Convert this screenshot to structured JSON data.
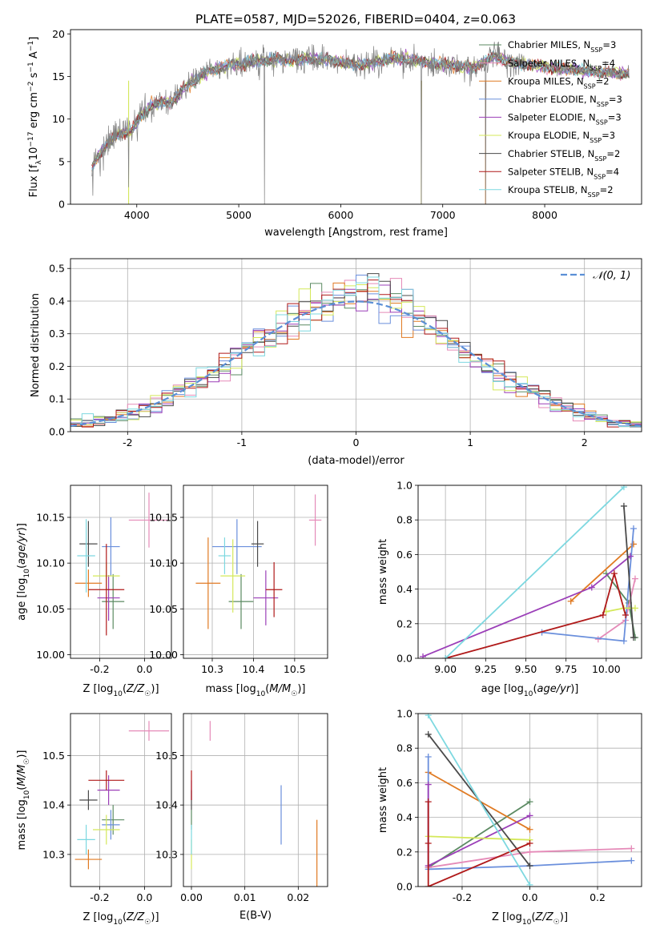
{
  "page": {
    "title": "PLATE=0587, MJD=52026, FIBERID=0404, z=0.063"
  },
  "palette": {
    "Chabrier MILES": "#5b8a62",
    "Salpeter MILES": "#e58ab8",
    "Kroupa MILES": "#e07a22",
    "Chabrier ELODIE": "#6a8fdc",
    "Salpeter ELODIE": "#9b3fb8",
    "Kroupa ELODIE": "#d4e85a",
    "Chabrier STELIB": "#4a4a4a",
    "Salpeter STELIB": "#b01919",
    "Kroupa STELIB": "#7dd8e0",
    "spectrum": "#808080",
    "normal": "#5b8fd6"
  },
  "chart_data": [
    {
      "id": "spectrum",
      "type": "line",
      "title": "PLATE=0587, MJD=52026, FIBERID=0404, z=0.063",
      "xlabel": "wavelength [Angstrom, rest frame]",
      "ylabel_parts": [
        "Flux [f",
        "λ",
        "10",
        "−17",
        " erg cm",
        "−2",
        " s",
        "−1",
        " A",
        "−1",
        "]"
      ],
      "xlim": [
        3350,
        8950
      ],
      "ylim": [
        0,
        20.5
      ],
      "xticks": [
        4000,
        5000,
        6000,
        7000,
        8000
      ],
      "yticks": [
        0,
        5,
        10,
        15,
        20
      ],
      "grid": false,
      "legend": "right",
      "legend_entries": [
        {
          "series": "Chabrier MILES",
          "label": "Chabrier MILES, N",
          "sub": "SSP",
          "rest": "=3"
        },
        {
          "series": "Salpeter MILES",
          "label": "Salpeter MILES, N",
          "sub": "SSP",
          "rest": "=4"
        },
        {
          "series": "Kroupa MILES",
          "label": "Kroupa MILES, N",
          "sub": "SSP",
          "rest": "=2"
        },
        {
          "series": "Chabrier ELODIE",
          "label": "Chabrier ELODIE, N",
          "sub": "SSP",
          "rest": "=3"
        },
        {
          "series": "Salpeter ELODIE",
          "label": "Salpeter ELODIE, N",
          "sub": "SSP",
          "rest": "=3"
        },
        {
          "series": "Kroupa ELODIE",
          "label": "Kroupa ELODIE, N",
          "sub": "SSP",
          "rest": "=3"
        },
        {
          "series": "Chabrier STELIB",
          "label": "Chabrier STELIB, N",
          "sub": "SSP",
          "rest": "=2"
        },
        {
          "series": "Salpeter STELIB",
          "label": "Salpeter STELIB, N",
          "sub": "SSP",
          "rest": "=4"
        },
        {
          "series": "Kroupa STELIB",
          "label": "Kroupa STELIB, N",
          "sub": "SSP",
          "rest": "=2"
        }
      ],
      "continuum": [
        [
          3560,
          4.2
        ],
        [
          3650,
          6.2
        ],
        [
          3750,
          7.6
        ],
        [
          3850,
          8.4
        ],
        [
          3950,
          8.6
        ],
        [
          4050,
          10.5
        ],
        [
          4150,
          11.7
        ],
        [
          4250,
          11.9
        ],
        [
          4350,
          12.1
        ],
        [
          4500,
          14.0
        ],
        [
          4700,
          15.6
        ],
        [
          4900,
          16.3
        ],
        [
          5100,
          16.6
        ],
        [
          5300,
          17.0
        ],
        [
          5500,
          16.9
        ],
        [
          5700,
          17.1
        ],
        [
          5900,
          17.0
        ],
        [
          6100,
          16.4
        ],
        [
          6300,
          16.5
        ],
        [
          6500,
          17.1
        ],
        [
          6700,
          16.9
        ],
        [
          6900,
          16.5
        ],
        [
          7100,
          16.3
        ],
        [
          7300,
          16.0
        ],
        [
          7500,
          17.4
        ],
        [
          7700,
          16.6
        ],
        [
          7900,
          16.3
        ],
        [
          8100,
          16.0
        ],
        [
          8300,
          15.8
        ],
        [
          8500,
          15.5
        ],
        [
          8700,
          15.4
        ],
        [
          8830,
          15.4
        ]
      ],
      "spikes": [
        [
          3570,
          1.0
        ],
        [
          5250,
          0
        ],
        [
          6790,
          0
        ],
        [
          7420,
          0
        ],
        [
          3920,
          2.0
        ]
      ]
    },
    {
      "id": "residuals",
      "type": "histogram",
      "xlabel": "(data-model)/error",
      "ylabel": "Normed distribution",
      "xlim": [
        -2.5,
        2.5
      ],
      "ylim": [
        0,
        0.53
      ],
      "xticks": [
        -2,
        -1,
        0,
        1,
        2
      ],
      "yticks": [
        0.0,
        0.1,
        0.2,
        0.3,
        0.4,
        0.5
      ],
      "grid": true,
      "legend": "top-right",
      "legend_label": "𝒩(0, 1)",
      "bin_width": 0.1
    },
    {
      "id": "age_vs_Z",
      "type": "scatter",
      "xlabel": "Z [log10(Z/Z☉)]",
      "ylabel": "age  [log10(age/yr)]",
      "xlim": [
        -0.33,
        0.12
      ],
      "ylim": [
        9.996,
        10.185
      ],
      "xticks": [
        -0.2,
        0.0
      ],
      "yticks": [
        10.0,
        10.05,
        10.1,
        10.15
      ],
      "grid": true,
      "points": [
        {
          "series": "Chabrier MILES",
          "x": -0.14,
          "xerr": 0.05,
          "y": 10.058,
          "yerr": 0.03
        },
        {
          "series": "Salpeter MILES",
          "x": 0.02,
          "xerr": 0.09,
          "y": 10.147,
          "yerr": 0.03
        },
        {
          "series": "Kroupa MILES",
          "x": -0.25,
          "xerr": 0.06,
          "y": 10.078,
          "yerr": 0.015
        },
        {
          "series": "Chabrier ELODIE",
          "x": -0.15,
          "xerr": 0.04,
          "y": 10.118,
          "yerr": 0.032
        },
        {
          "series": "Salpeter ELODIE",
          "x": -0.16,
          "xerr": 0.05,
          "y": 10.062,
          "yerr": 0.025
        },
        {
          "series": "Kroupa ELODIE",
          "x": -0.17,
          "xerr": 0.06,
          "y": 10.086,
          "yerr": 0.015
        },
        {
          "series": "Chabrier STELIB",
          "x": -0.25,
          "xerr": 0.04,
          "y": 10.121,
          "yerr": 0.025
        },
        {
          "series": "Salpeter STELIB",
          "x": -0.17,
          "xerr": 0.08,
          "y": 10.071,
          "yerr": 0.05
        },
        {
          "series": "Kroupa STELIB",
          "x": -0.26,
          "xerr": 0.04,
          "y": 10.108,
          "yerr": 0.04
        }
      ]
    },
    {
      "id": "age_vs_mass",
      "type": "scatter",
      "xlabel": "mass [log10(M/M☉)]",
      "xlim": [
        10.23,
        10.58
      ],
      "ylim": [
        9.996,
        10.185
      ],
      "xticks": [
        10.3,
        10.4,
        10.5
      ],
      "yticks": [
        10.0,
        10.05,
        10.1,
        10.15
      ],
      "grid": true,
      "points": [
        {
          "series": "Chabrier MILES",
          "x": 10.37,
          "xerr": 0.03,
          "y": 10.058,
          "yerr": 0.03
        },
        {
          "series": "Salpeter MILES",
          "x": 10.55,
          "xerr": 0.015,
          "y": 10.147,
          "yerr": 0.028
        },
        {
          "series": "Kroupa MILES",
          "x": 10.29,
          "xerr": 0.03,
          "y": 10.078,
          "yerr": 0.05
        },
        {
          "series": "Chabrier ELODIE",
          "x": 10.36,
          "xerr": 0.06,
          "y": 10.118,
          "yerr": 0.03
        },
        {
          "series": "Salpeter ELODIE",
          "x": 10.43,
          "xerr": 0.03,
          "y": 10.062,
          "yerr": 0.03
        },
        {
          "series": "Kroupa ELODIE",
          "x": 10.35,
          "xerr": 0.03,
          "y": 10.086,
          "yerr": 0.04
        },
        {
          "series": "Chabrier STELIB",
          "x": 10.41,
          "xerr": 0.015,
          "y": 10.121,
          "yerr": 0.025
        },
        {
          "series": "Salpeter STELIB",
          "x": 10.45,
          "xerr": 0.02,
          "y": 10.071,
          "yerr": 0.03
        },
        {
          "series": "Kroupa STELIB",
          "x": 10.33,
          "xerr": 0.015,
          "y": 10.108,
          "yerr": 0.02
        }
      ]
    },
    {
      "id": "weight_vs_age",
      "type": "line",
      "xlabel": "age  [log10(age/yr)]",
      "ylabel": "mass weight",
      "xlim": [
        8.83,
        10.22
      ],
      "ylim": [
        0,
        1
      ],
      "xticks": [
        9.0,
        9.25,
        9.5,
        9.75,
        10.0
      ],
      "yticks": [
        0.0,
        0.2,
        0.4,
        0.6,
        0.8,
        1.0
      ],
      "grid": true,
      "series": [
        {
          "name": "Chabrier MILES",
          "points": [
            [
              10.0,
              0.49
            ],
            [
              10.14,
              0.32
            ],
            [
              10.18,
              0.12
            ]
          ]
        },
        {
          "name": "Salpeter MILES",
          "points": [
            [
              9.95,
              0.11
            ],
            [
              10.12,
              0.22
            ],
            [
              10.18,
              0.46
            ]
          ]
        },
        {
          "name": "Kroupa MILES",
          "points": [
            [
              9.78,
              0.33
            ],
            [
              10.17,
              0.66
            ]
          ]
        },
        {
          "name": "Chabrier ELODIE",
          "points": [
            [
              9.6,
              0.15
            ],
            [
              10.11,
              0.1
            ],
            [
              10.17,
              0.75
            ]
          ]
        },
        {
          "name": "Salpeter ELODIE",
          "points": [
            [
              8.86,
              0.01
            ],
            [
              9.91,
              0.41
            ],
            [
              10.15,
              0.59
            ]
          ]
        },
        {
          "name": "Kroupa ELODIE",
          "points": [
            [
              10.0,
              0.27
            ],
            [
              10.11,
              0.29
            ],
            [
              10.18,
              0.29
            ]
          ]
        },
        {
          "name": "Chabrier STELIB",
          "points": [
            [
              10.11,
              0.88
            ],
            [
              10.17,
              0.12
            ]
          ]
        },
        {
          "name": "Salpeter STELIB",
          "points": [
            [
              9.0,
              0.0
            ],
            [
              9.98,
              0.25
            ],
            [
              10.05,
              0.49
            ],
            [
              10.12,
              0.25
            ]
          ]
        },
        {
          "name": "Kroupa STELIB",
          "points": [
            [
              9.0,
              0.0
            ],
            [
              10.11,
              0.99
            ]
          ]
        }
      ]
    },
    {
      "id": "mass_vs_Z",
      "type": "scatter",
      "xlabel": "Z [log10(Z/Z☉)]",
      "ylabel": "mass [log10(M/M☉)]",
      "xlim": [
        -0.33,
        0.12
      ],
      "ylim": [
        10.235,
        10.585
      ],
      "xticks": [
        -0.2,
        0.0
      ],
      "yticks": [
        10.3,
        10.4,
        10.5
      ],
      "grid": true,
      "points": [
        {
          "series": "Chabrier MILES",
          "x": -0.14,
          "xerr": 0.05,
          "y": 10.37,
          "yerr": 0.03
        },
        {
          "series": "Salpeter MILES",
          "x": 0.02,
          "xerr": 0.09,
          "y": 10.55,
          "yerr": 0.02
        },
        {
          "series": "Kroupa MILES",
          "x": -0.25,
          "xerr": 0.06,
          "y": 10.29,
          "yerr": 0.02
        },
        {
          "series": "Chabrier ELODIE",
          "x": -0.15,
          "xerr": 0.04,
          "y": 10.36,
          "yerr": 0.03
        },
        {
          "series": "Salpeter ELODIE",
          "x": -0.16,
          "xerr": 0.05,
          "y": 10.43,
          "yerr": 0.03
        },
        {
          "series": "Kroupa ELODIE",
          "x": -0.17,
          "xerr": 0.06,
          "y": 10.35,
          "yerr": 0.03
        },
        {
          "series": "Chabrier STELIB",
          "x": -0.25,
          "xerr": 0.04,
          "y": 10.41,
          "yerr": 0.02
        },
        {
          "series": "Salpeter STELIB",
          "x": -0.17,
          "xerr": 0.08,
          "y": 10.45,
          "yerr": 0.02
        },
        {
          "series": "Kroupa STELIB",
          "x": -0.26,
          "xerr": 0.04,
          "y": 10.33,
          "yerr": 0.03
        }
      ]
    },
    {
      "id": "mass_vs_ebv",
      "type": "scatter",
      "xlabel": "E(B-V)",
      "xlim": [
        -0.0015,
        0.0255
      ],
      "ylim": [
        10.235,
        10.585
      ],
      "xticks": [
        0.0,
        0.01,
        0.02
      ],
      "yticks": [
        10.3,
        10.4,
        10.5
      ],
      "grid": true,
      "points": [
        {
          "series": "Chabrier MILES",
          "x": 0.0,
          "y": 10.37,
          "yerr": 0.02
        },
        {
          "series": "Salpeter MILES",
          "x": 0.0035,
          "y": 10.55,
          "yerr": 0.02
        },
        {
          "series": "Kroupa MILES",
          "x": 0.0235,
          "y": 10.3,
          "yerr": 0.07
        },
        {
          "series": "Chabrier ELODIE",
          "x": 0.0168,
          "y": 10.38,
          "yerr": 0.06
        },
        {
          "series": "Salpeter ELODIE",
          "x": 0.0,
          "y": 10.43,
          "yerr": 0.02
        },
        {
          "series": "Kroupa ELODIE",
          "x": 0.0,
          "y": 10.3,
          "yerr": 0.03
        },
        {
          "series": "Chabrier STELIB",
          "x": 0.0,
          "y": 10.41,
          "yerr": 0.02
        },
        {
          "series": "Salpeter STELIB",
          "x": 0.0,
          "y": 10.44,
          "yerr": 0.03
        },
        {
          "series": "Kroupa STELIB",
          "x": 0.0,
          "y": 10.33,
          "yerr": 0.03
        }
      ]
    },
    {
      "id": "weight_vs_Z",
      "type": "line",
      "xlabel": "Z [log10(Z/Z☉)]",
      "ylabel": "mass weight",
      "xlim": [
        -0.33,
        0.33
      ],
      "ylim": [
        0,
        1
      ],
      "xticks": [
        -0.2,
        0.0,
        0.2
      ],
      "yticks": [
        0.0,
        0.2,
        0.4,
        0.6,
        0.8,
        1.0
      ],
      "grid": true,
      "series": [
        {
          "name": "Chabrier MILES",
          "points": [
            [
              -0.3,
              0.11
            ],
            [
              0.0,
              0.49
            ]
          ]
        },
        {
          "name": "Salpeter MILES",
          "points": [
            [
              -0.3,
              0.11
            ],
            [
              0.0,
              0.2
            ],
            [
              0.3,
              0.22
            ]
          ]
        },
        {
          "name": "Kroupa MILES",
          "points": [
            [
              -0.3,
              0.66
            ],
            [
              0.0,
              0.33
            ]
          ]
        },
        {
          "name": "Chabrier ELODIE",
          "points": [
            [
              -0.3,
              0.75
            ],
            [
              -0.3,
              0.1
            ],
            [
              0.0,
              0.12
            ],
            [
              0.3,
              0.15
            ]
          ]
        },
        {
          "name": "Salpeter ELODIE",
          "points": [
            [
              -0.3,
              0.59
            ],
            [
              -0.3,
              0.12
            ],
            [
              0.0,
              0.41
            ]
          ]
        },
        {
          "name": "Kroupa ELODIE",
          "points": [
            [
              -0.3,
              0.29
            ],
            [
              0.0,
              0.27
            ]
          ]
        },
        {
          "name": "Chabrier STELIB",
          "points": [
            [
              -0.3,
              0.88
            ],
            [
              0.0,
              0.12
            ]
          ]
        },
        {
          "name": "Salpeter STELIB",
          "points": [
            [
              -0.3,
              0.49
            ],
            [
              -0.3,
              0.25
            ],
            [
              -0.3,
              0.0
            ],
            [
              0.0,
              0.25
            ]
          ]
        },
        {
          "name": "Kroupa STELIB",
          "points": [
            [
              -0.3,
              0.99
            ],
            [
              0.0,
              0.01
            ]
          ]
        }
      ]
    }
  ]
}
